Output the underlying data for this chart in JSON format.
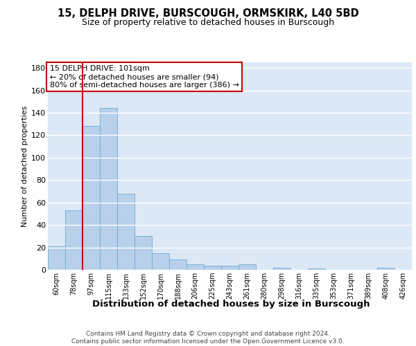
{
  "title1": "15, DELPH DRIVE, BURSCOUGH, ORMSKIRK, L40 5BD",
  "title2": "Size of property relative to detached houses in Burscough",
  "xlabel": "Distribution of detached houses by size in Burscough",
  "ylabel": "Number of detached properties",
  "footer1": "Contains HM Land Registry data © Crown copyright and database right 2024.",
  "footer2": "Contains public sector information licensed under the Open Government Licence v3.0.",
  "categories": [
    "60sqm",
    "78sqm",
    "97sqm",
    "115sqm",
    "133sqm",
    "152sqm",
    "170sqm",
    "188sqm",
    "206sqm",
    "225sqm",
    "243sqm",
    "261sqm",
    "280sqm",
    "298sqm",
    "316sqm",
    "335sqm",
    "353sqm",
    "371sqm",
    "389sqm",
    "408sqm",
    "426sqm"
  ],
  "values": [
    21,
    53,
    128,
    144,
    68,
    30,
    15,
    9,
    5,
    4,
    4,
    5,
    0,
    2,
    0,
    1,
    0,
    0,
    0,
    2,
    0
  ],
  "bar_color": "#b8d0ea",
  "bar_edge_color": "#6aaad4",
  "highlight_line_color": "#cc0000",
  "highlight_line_index": 2,
  "annotation_line1": "15 DELPH DRIVE: 101sqm",
  "annotation_line2": "← 20% of detached houses are smaller (94)",
  "annotation_line3": "80% of semi-detached houses are larger (386) →",
  "annotation_box_facecolor": "white",
  "annotation_box_edgecolor": "#cc0000",
  "ylim": [
    0,
    185
  ],
  "yticks": [
    0,
    20,
    40,
    60,
    80,
    100,
    120,
    140,
    160,
    180
  ],
  "background_color": "#dce8f5",
  "grid_color": "white",
  "title1_fontsize": 10.5,
  "title2_fontsize": 9,
  "ylabel_fontsize": 8,
  "xlabel_fontsize": 9.5,
  "tick_fontsize": 7,
  "footer_fontsize": 6.5,
  "annotation_fontsize": 8
}
